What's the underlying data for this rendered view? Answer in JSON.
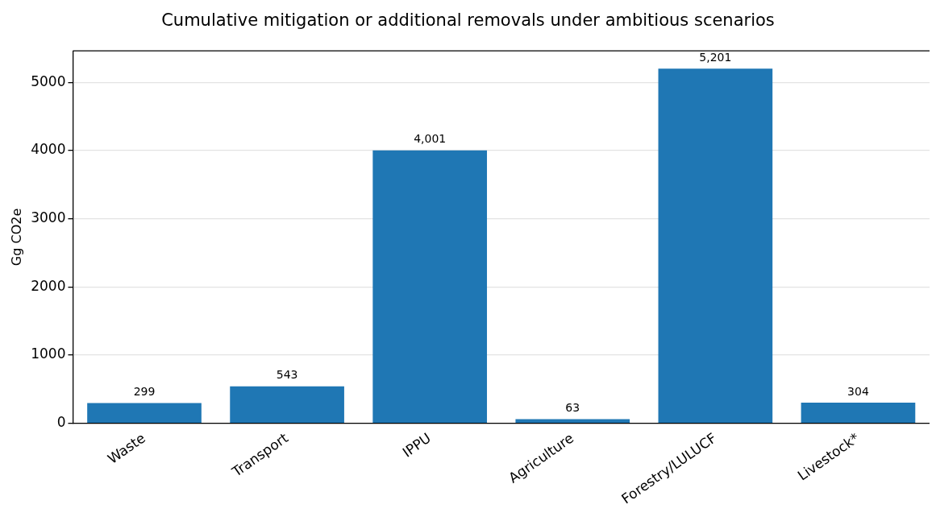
{
  "chart_data": {
    "type": "bar",
    "title": "Cumulative mitigation or additional removals under ambitious scenarios",
    "ylabel": "Gg CO2e",
    "categories": [
      "Waste",
      "Transport",
      "IPPU",
      "Agriculture",
      "Forestry/LULUCF",
      "Livestock*"
    ],
    "values": [
      299,
      543,
      4001,
      63,
      5201,
      304
    ],
    "value_labels": [
      "299",
      "543",
      "4,001",
      "63",
      "5,201",
      "304"
    ],
    "color": "#1f77b4",
    "ylim": [
      0,
      5461
    ],
    "yticks": [
      0,
      1000,
      2000,
      3000,
      4000,
      5000
    ],
    "grid": "y",
    "legend": false
  }
}
